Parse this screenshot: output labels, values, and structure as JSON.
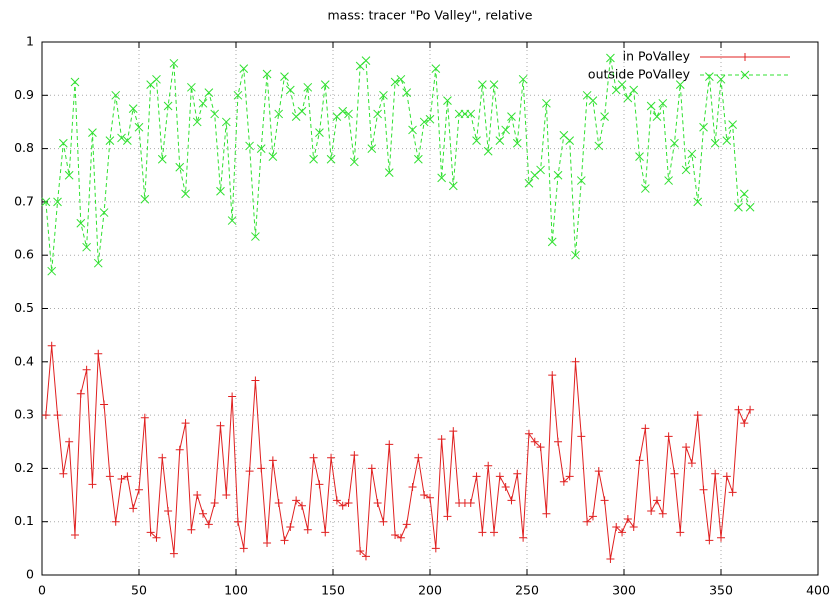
{
  "chart_data": {
    "type": "line",
    "title": "mass: tracer \"Po Valley\", relative",
    "x": [
      2,
      5,
      8,
      11,
      14,
      17,
      20,
      23,
      26,
      29,
      32,
      35,
      38,
      41,
      44,
      47,
      50,
      53,
      56,
      59,
      62,
      65,
      68,
      71,
      74,
      77,
      80,
      83,
      86,
      89,
      92,
      95,
      98,
      101,
      104,
      107,
      110,
      113,
      116,
      119,
      122,
      125,
      128,
      131,
      134,
      137,
      140,
      143,
      146,
      149,
      152,
      155,
      158,
      161,
      164,
      167,
      170,
      173,
      176,
      179,
      182,
      185,
      188,
      191,
      194,
      197,
      200,
      203,
      206,
      209,
      212,
      215,
      218,
      221,
      224,
      227,
      230,
      233,
      236,
      239,
      242,
      245,
      248,
      251,
      254,
      257,
      260,
      263,
      266,
      269,
      272,
      275,
      278,
      281,
      284,
      287,
      290,
      293,
      296,
      299,
      302,
      305,
      308,
      311,
      314,
      317,
      320,
      323,
      326,
      329,
      332,
      335,
      338,
      341,
      344,
      347,
      350,
      353,
      356,
      359,
      362,
      365
    ],
    "series": [
      {
        "name": "in PoValley",
        "color": "#e02020",
        "marker": "+",
        "dashed": false,
        "values": [
          0.3,
          0.43,
          0.3,
          0.19,
          0.25,
          0.075,
          0.34,
          0.385,
          0.17,
          0.415,
          0.32,
          0.185,
          0.1,
          0.18,
          0.185,
          0.125,
          0.16,
          0.295,
          0.08,
          0.07,
          0.22,
          0.12,
          0.04,
          0.235,
          0.285,
          0.085,
          0.15,
          0.115,
          0.095,
          0.135,
          0.28,
          0.15,
          0.335,
          0.1,
          0.05,
          0.195,
          0.365,
          0.2,
          0.06,
          0.215,
          0.135,
          0.065,
          0.09,
          0.14,
          0.13,
          0.085,
          0.22,
          0.17,
          0.08,
          0.22,
          0.14,
          0.13,
          0.135,
          0.225,
          0.045,
          0.035,
          0.2,
          0.135,
          0.1,
          0.245,
          0.075,
          0.07,
          0.095,
          0.165,
          0.22,
          0.15,
          0.145,
          0.05,
          0.255,
          0.11,
          0.27,
          0.135,
          0.135,
          0.135,
          0.185,
          0.08,
          0.205,
          0.08,
          0.185,
          0.165,
          0.14,
          0.19,
          0.07,
          0.265,
          0.25,
          0.24,
          0.115,
          0.375,
          0.25,
          0.175,
          0.185,
          0.4,
          0.26,
          0.1,
          0.11,
          0.195,
          0.14,
          0.03,
          0.09,
          0.08,
          0.105,
          0.09,
          0.215,
          0.275,
          0.12,
          0.14,
          0.115,
          0.26,
          0.19,
          0.08,
          0.24,
          0.21,
          0.3,
          0.16,
          0.065,
          0.19,
          0.07,
          0.185,
          0.155,
          0.31,
          0.285,
          0.31
        ]
      },
      {
        "name": "outside PoValley",
        "color": "#30e030",
        "marker": "x",
        "dashed": true,
        "values": [
          0.7,
          0.57,
          0.7,
          0.81,
          0.75,
          0.925,
          0.66,
          0.615,
          0.83,
          0.585,
          0.68,
          0.815,
          0.9,
          0.82,
          0.815,
          0.875,
          0.84,
          0.705,
          0.92,
          0.93,
          0.78,
          0.88,
          0.96,
          0.765,
          0.715,
          0.915,
          0.85,
          0.885,
          0.905,
          0.865,
          0.72,
          0.85,
          0.665,
          0.9,
          0.95,
          0.805,
          0.635,
          0.8,
          0.94,
          0.785,
          0.865,
          0.935,
          0.91,
          0.86,
          0.87,
          0.915,
          0.78,
          0.83,
          0.92,
          0.78,
          0.86,
          0.87,
          0.865,
          0.775,
          0.955,
          0.965,
          0.8,
          0.865,
          0.9,
          0.755,
          0.925,
          0.93,
          0.905,
          0.835,
          0.78,
          0.85,
          0.855,
          0.95,
          0.745,
          0.89,
          0.73,
          0.865,
          0.865,
          0.865,
          0.815,
          0.92,
          0.795,
          0.92,
          0.815,
          0.835,
          0.86,
          0.81,
          0.93,
          0.735,
          0.75,
          0.76,
          0.885,
          0.625,
          0.75,
          0.825,
          0.815,
          0.6,
          0.74,
          0.9,
          0.89,
          0.805,
          0.86,
          0.97,
          0.91,
          0.92,
          0.895,
          0.91,
          0.785,
          0.725,
          0.88,
          0.86,
          0.885,
          0.74,
          0.81,
          0.92,
          0.76,
          0.79,
          0.7,
          0.84,
          0.935,
          0.81,
          0.93,
          0.815,
          0.845,
          0.69,
          0.715,
          0.69
        ]
      }
    ],
    "xlim": [
      0,
      400
    ],
    "xticks": [
      0,
      50,
      100,
      150,
      200,
      250,
      300,
      350,
      400
    ],
    "ylim": [
      0,
      1
    ],
    "yticks": [
      0,
      0.1,
      0.2,
      0.3,
      0.4,
      0.5,
      0.6,
      0.7,
      0.8,
      0.9,
      1
    ],
    "grid": true,
    "legend": "top-right"
  }
}
